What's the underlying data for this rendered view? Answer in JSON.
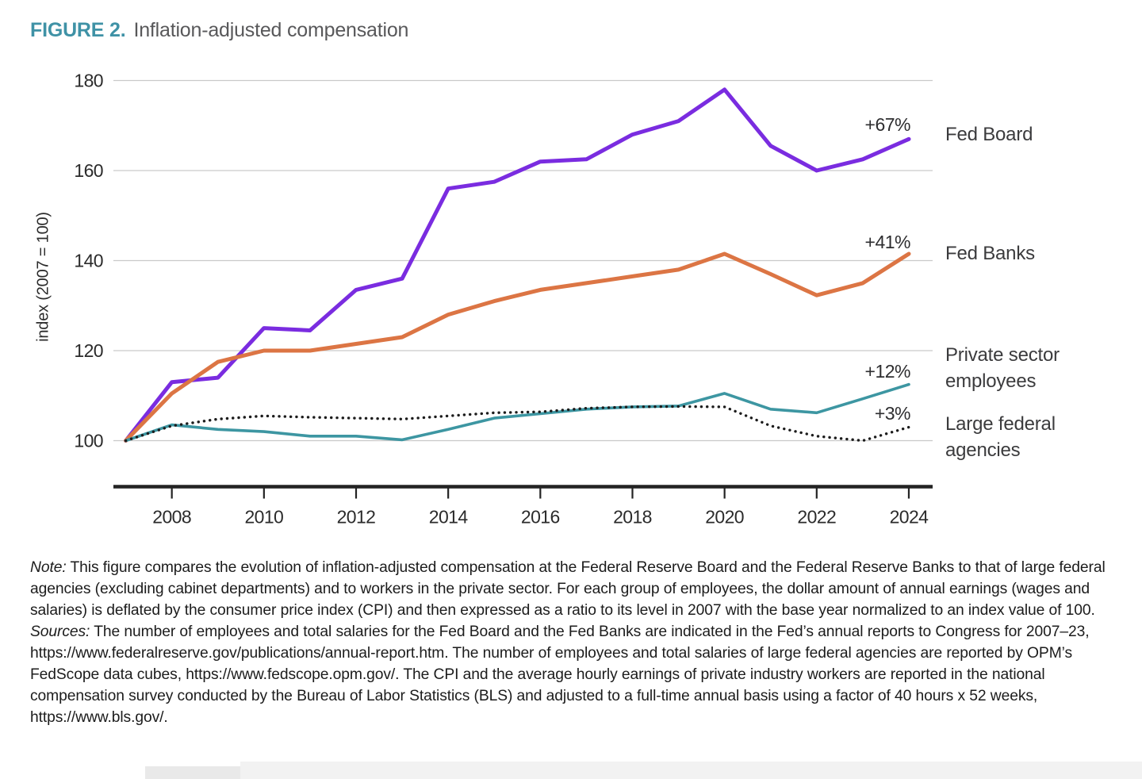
{
  "figure": {
    "label": "FIGURE 2.",
    "title": "Inflation-adjusted compensation"
  },
  "chart_data": {
    "type": "line",
    "title": "FIGURE 2. Inflation-adjusted compensation",
    "xlabel": "",
    "ylabel": "index (2007 = 100)",
    "grid": "horizontal",
    "legend_position": "right",
    "ylim": [
      88,
      185
    ],
    "x": [
      2007,
      2008,
      2009,
      2010,
      2011,
      2012,
      2013,
      2014,
      2015,
      2016,
      2017,
      2018,
      2019,
      2020,
      2021,
      2022,
      2023,
      2024
    ],
    "x_ticks": [
      2008,
      2010,
      2012,
      2014,
      2016,
      2018,
      2020,
      2022,
      2024
    ],
    "y_ticks": [
      100,
      120,
      140,
      160,
      180
    ],
    "series": [
      {
        "name": "Fed Board",
        "end_label": "+67%",
        "color": "#7a2ce0",
        "line_style": "solid",
        "values": [
          100,
          113,
          114,
          125,
          124.5,
          133.5,
          136,
          156,
          157.5,
          162,
          162.5,
          168,
          171,
          178,
          165.5,
          160,
          162.5,
          167
        ]
      },
      {
        "name": "Fed Banks",
        "end_label": "+41%",
        "color": "#dc7544",
        "line_style": "solid",
        "values": [
          100,
          110.5,
          117.5,
          120,
          120,
          121.5,
          123,
          128,
          131,
          133.5,
          135,
          136.5,
          138,
          141.5,
          137,
          132.3,
          135,
          141.5
        ]
      },
      {
        "name": "Private sector employees",
        "end_label": "+12%",
        "color": "#3d96a2",
        "line_style": "solid",
        "values": [
          100,
          103.5,
          102.5,
          102,
          101,
          101,
          100.2,
          102.5,
          105,
          106,
          107,
          107.5,
          107.7,
          110.5,
          107,
          106.2,
          109.3,
          112.5
        ]
      },
      {
        "name": "Large federal agencies",
        "end_label": "+3%",
        "color": "#1c1c1c",
        "line_style": "dotted",
        "values": [
          100,
          103.3,
          104.8,
          105.5,
          105.2,
          105,
          104.8,
          105.5,
          106.2,
          106.4,
          107.2,
          107.5,
          107.6,
          107.5,
          103.3,
          101,
          100,
          103
        ]
      }
    ]
  },
  "notes": {
    "note_label": "Note:",
    "note_text": " This figure compares the evolution of inflation-adjusted compensation at the Federal Reserve Board and the Federal Reserve Banks to that of large federal agencies (excluding cabinet departments) and to workers in the private sector. For each group of employees, the dollar amount of annual earnings (wages and salaries) is deflated by the consumer price index (CPI) and then expressed as a ratio to its level in 2007 with the base year normalized to an index value of 100.",
    "sources_label": "Sources:",
    "sources_text": " The number of employees and total salaries for the Fed Board and the Fed Banks are indicated in the Fed’s annual reports to Congress for 2007–23,  https://www.federalreserve.gov/publications/annual-report.htm. The number of employees and total salaries of large federal agencies are reported by OPM’s FedScope data cubes, https://www.fedscope.opm.gov/. The CPI and the average hourly earnings of private industry workers are reported in the national compensation survey conducted by the Bureau of Labor Statistics (BLS) and adjusted to a full-time annual basis using a factor of 40 hours x 52 weeks, https://www.bls.gov/."
  }
}
